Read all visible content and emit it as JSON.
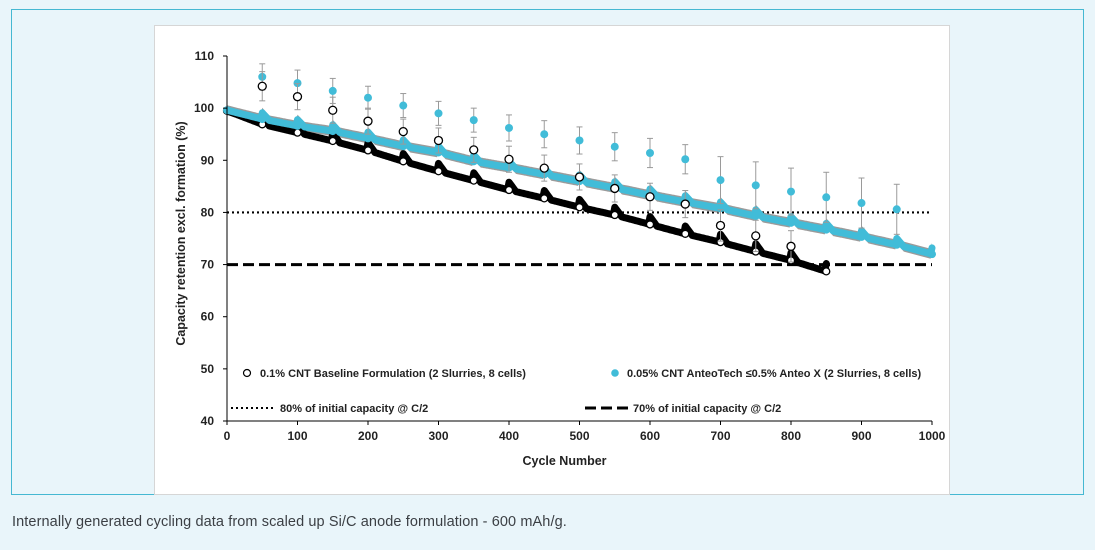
{
  "caption": "Internally generated cycling data from scaled up Si/C anode formulation - 600 mAh/g.",
  "colors": {
    "frame_border": "#45b8d2",
    "background": "#e9f5fa",
    "series_cnt_anteo": "#41bcd8",
    "series_cnt_anteo_band": "#8a8a8a",
    "series_baseline": "#000000",
    "error_bars": "#9a9a9a"
  },
  "chart_data": {
    "type": "scatter",
    "xlabel": "Cycle Number",
    "ylabel": "Capacity retention excl. formation (%)",
    "xlim": [
      0,
      1000
    ],
    "ylim": [
      40,
      110
    ],
    "xticks": [
      "0",
      "100",
      "200",
      "300",
      "400",
      "500",
      "600",
      "700",
      "800",
      "900",
      "1000"
    ],
    "yticks": [
      "40",
      "50",
      "60",
      "70",
      "80",
      "90",
      "100",
      "110"
    ],
    "grid": false,
    "legend_position": "bottom",
    "series": [
      {
        "name": "0.1% CNT Baseline Formulation (2 Slurries, 8 cells)",
        "marker": "open-circle",
        "color": "#000000",
        "x": [
          0,
          50,
          100,
          150,
          200,
          250,
          300,
          350,
          400,
          450,
          500,
          550,
          600,
          650,
          700,
          750,
          800,
          850
        ],
        "y": [
          99.5,
          96.9,
          95.3,
          93.7,
          91.9,
          89.8,
          87.9,
          86.1,
          84.3,
          82.7,
          81.0,
          79.5,
          77.7,
          75.9,
          74.3,
          72.5,
          70.8,
          68.7
        ]
      },
      {
        "name": "0.05% CNT AnteoTech ≤0.5% Anteo X (2 Slurries, 8 cells)",
        "marker": "filled-circle",
        "color": "#41bcd8",
        "x": [
          0,
          50,
          100,
          150,
          200,
          250,
          300,
          350,
          400,
          450,
          500,
          550,
          600,
          650,
          700,
          750,
          800,
          850,
          900,
          950,
          1000
        ],
        "y": [
          99.6,
          97.9,
          96.6,
          95.6,
          94.2,
          92.7,
          91.5,
          89.8,
          88.6,
          87.3,
          86.0,
          84.7,
          83.3,
          82.0,
          80.8,
          79.3,
          78.0,
          76.7,
          75.3,
          73.8,
          72.0
        ]
      },
      {
        "name": "80% of initial capacity @ C/2",
        "style": "dotted",
        "color": "#000000",
        "x": [
          0,
          1000
        ],
        "y": [
          80,
          80
        ]
      },
      {
        "name": "70% of initial capacity @ C/2",
        "style": "dashed",
        "color": "#000000",
        "x": [
          0,
          1000
        ],
        "y": [
          70,
          70
        ]
      }
    ],
    "checkup_points": [
      {
        "series": "0.05% CNT AnteoTech ≤0.5% Anteo X (2 Slurries, 8 cells)",
        "x": [
          50,
          100,
          150,
          200,
          250,
          300,
          350,
          400,
          450,
          500,
          550,
          600,
          650,
          700,
          750,
          800,
          850,
          900,
          950
        ],
        "y": [
          106,
          104.8,
          103.3,
          102,
          100.5,
          99,
          97.7,
          96.2,
          95,
          93.8,
          92.6,
          91.4,
          90.2,
          86.2,
          85.2,
          84,
          82.9,
          81.8,
          80.6
        ],
        "error": [
          2.5,
          2.5,
          2.4,
          2.2,
          2.3,
          2.3,
          2.3,
          2.5,
          2.6,
          2.6,
          2.7,
          2.8,
          2.8,
          4.5,
          4.5,
          4.5,
          4.8,
          4.8,
          4.8
        ]
      },
      {
        "series": "0.1% CNT Baseline Formulation (2 Slurries, 8 cells)",
        "x": [
          50,
          100,
          150,
          200,
          250,
          300,
          350,
          400,
          450,
          500,
          550,
          600,
          650,
          700,
          750,
          800
        ],
        "y": [
          104.2,
          102.2,
          99.6,
          97.5,
          95.5,
          93.8,
          92,
          90.2,
          88.5,
          86.8,
          84.6,
          83,
          81.6,
          77.5,
          75.5,
          73.5
        ],
        "error": [
          2.8,
          2.5,
          2.5,
          2.5,
          2.4,
          2.4,
          2.4,
          2.5,
          2.5,
          2.5,
          2.6,
          2.6,
          2.6,
          3.0,
          3.0,
          3.0
        ]
      }
    ]
  }
}
